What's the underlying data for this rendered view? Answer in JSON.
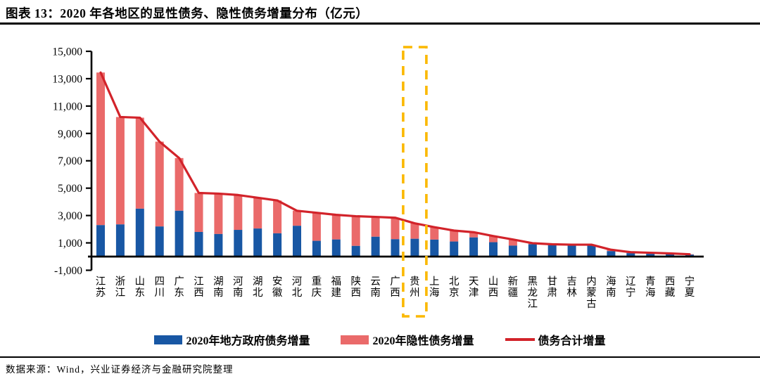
{
  "header": {
    "title": "图表 13：2020 年各地区的显性债务、隐性债务增量分布（亿元）"
  },
  "footer": {
    "source": "数据来源：Wind，兴业证券经济与金融研究院整理"
  },
  "legend": {
    "explicit": {
      "label": "2020年地方政府债务增量",
      "color": "#1857A4",
      "swatch": "rect"
    },
    "hidden": {
      "label": "2020年隐性债务增量",
      "color": "#EA6A6A",
      "swatch": "rect"
    },
    "total": {
      "label": "债务合计增量",
      "color": "#D2232A",
      "swatch": "line"
    }
  },
  "chart_data": {
    "type": "bar",
    "subtype": "stacked-bars-with-line",
    "title": "2020 年各地区的显性债务、隐性债务增量分布（亿元）",
    "xlabel": "",
    "ylabel": "",
    "ylim": [
      -1000,
      15000
    ],
    "yticks": [
      -1000,
      1000,
      3000,
      5000,
      7000,
      9000,
      11000,
      13000,
      15000
    ],
    "grid": false,
    "legend_position": "bottom",
    "categories": [
      "江苏",
      "浙江",
      "山东",
      "四川",
      "广东",
      "江西",
      "湖南",
      "河南",
      "湖北",
      "安徽",
      "河北",
      "重庆",
      "福建",
      "陕西",
      "云南",
      "广西",
      "贵州",
      "上海",
      "北京",
      "天津",
      "山西",
      "新疆",
      "黑龙江",
      "甘肃",
      "吉林",
      "内蒙古",
      "海南",
      "辽宁",
      "青海",
      "西藏",
      "宁夏"
    ],
    "series": [
      {
        "name": "2020年地方政府债务增量",
        "type": "bar",
        "color": "#1857A4",
        "values": [
          2300,
          2350,
          3500,
          2200,
          3350,
          1800,
          1650,
          1950,
          2050,
          1700,
          2250,
          1150,
          1250,
          780,
          1450,
          1270,
          1300,
          1240,
          1100,
          1400,
          1050,
          800,
          900,
          830,
          800,
          830,
          400,
          250,
          200,
          190,
          140
        ]
      },
      {
        "name": "2020年隐性债务增量",
        "type": "bar",
        "color": "#EA6A6A",
        "values": [
          11150,
          7850,
          6650,
          6200,
          3850,
          2850,
          2950,
          2550,
          2250,
          2400,
          1100,
          2050,
          1800,
          2170,
          1450,
          1570,
          1130,
          910,
          800,
          380,
          450,
          450,
          80,
          70,
          70,
          40,
          100,
          70,
          80,
          40,
          30
        ]
      },
      {
        "name": "债务合计增量",
        "type": "line",
        "color": "#D2232A",
        "values": [
          13450,
          10200,
          10150,
          8400,
          7200,
          4650,
          4600,
          4500,
          4300,
          4100,
          3350,
          3200,
          3050,
          2950,
          2900,
          2840,
          2430,
          2150,
          1900,
          1780,
          1500,
          1250,
          980,
          900,
          870,
          870,
          500,
          320,
          280,
          230,
          170
        ]
      }
    ],
    "highlight": {
      "category": "贵州",
      "color": "#FBB800",
      "style": "dashed-box"
    }
  }
}
